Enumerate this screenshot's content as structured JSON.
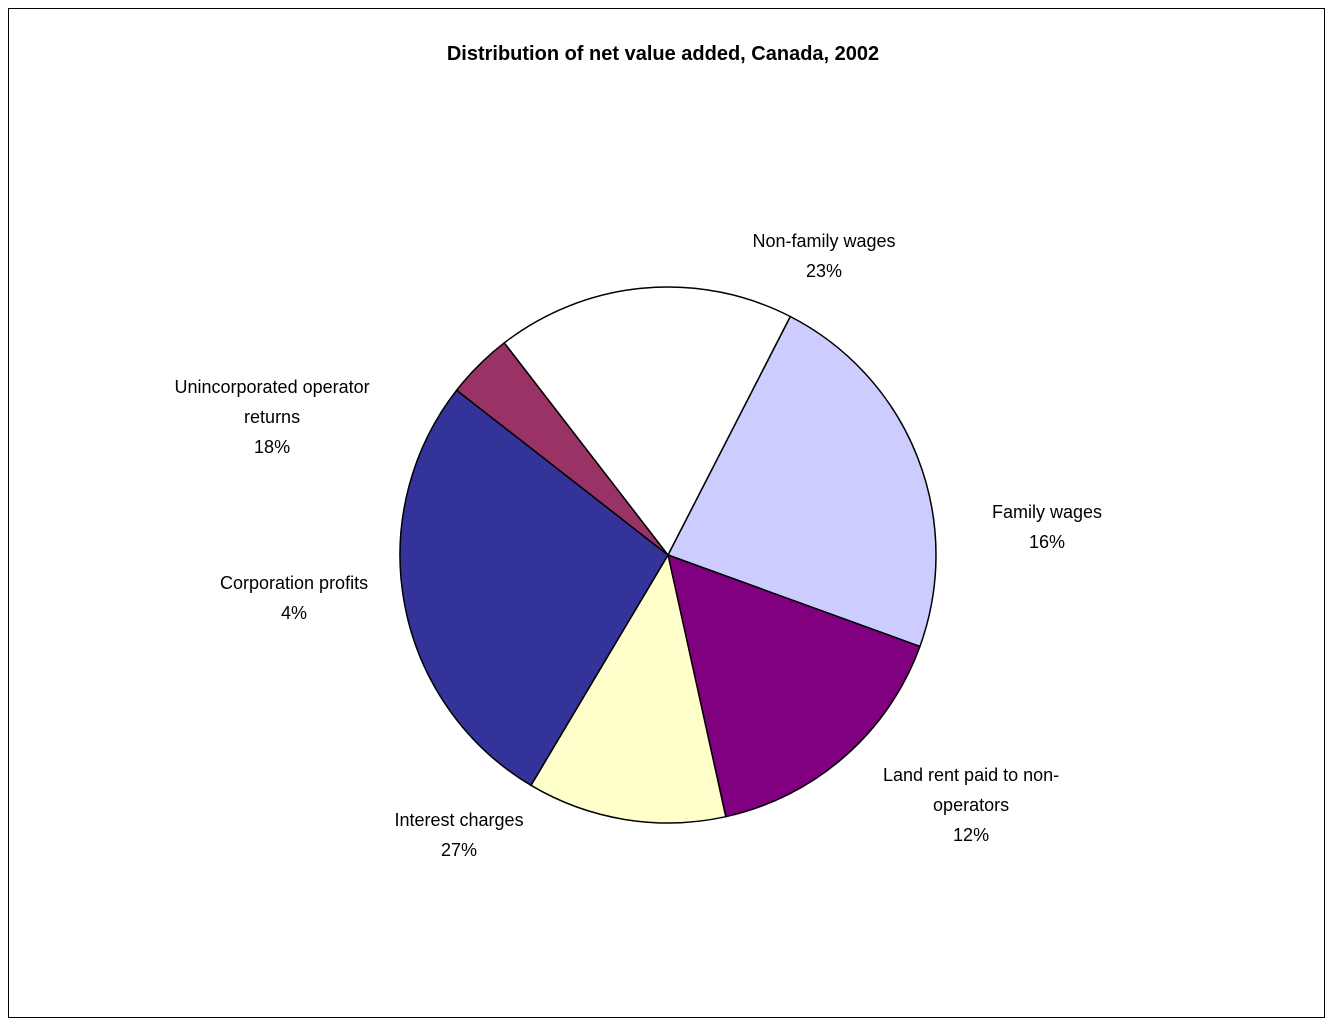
{
  "chart_data": {
    "type": "pie",
    "title": "Distribution of net value added, Canada, 2002",
    "slices": [
      {
        "name": "Non-family wages",
        "label_lines": [
          "Non-family wages"
        ],
        "pct_label": "23%",
        "value": 23,
        "color": "#CCCCFF"
      },
      {
        "name": "Family wages",
        "label_lines": [
          "Family wages"
        ],
        "pct_label": "16%",
        "value": 16,
        "color": "#800080"
      },
      {
        "name": "Land rent paid to non-operators",
        "label_lines": [
          "Land rent paid to non-",
          "operators"
        ],
        "pct_label": "12%",
        "value": 12,
        "color": "#FFFFCC"
      },
      {
        "name": "Interest charges",
        "label_lines": [
          "Interest charges"
        ],
        "pct_label": "27%",
        "value": 27,
        "color": "#333399"
      },
      {
        "name": "Corporation profits",
        "label_lines": [
          "Corporation profits"
        ],
        "pct_label": "4%",
        "value": 4,
        "color": "#993366"
      },
      {
        "name": "Unincorporated operator returns",
        "label_lines": [
          "Unincorporated operator",
          "returns"
        ],
        "pct_label": "18%",
        "value": 18,
        "color": "#FFFFFF"
      }
    ]
  }
}
